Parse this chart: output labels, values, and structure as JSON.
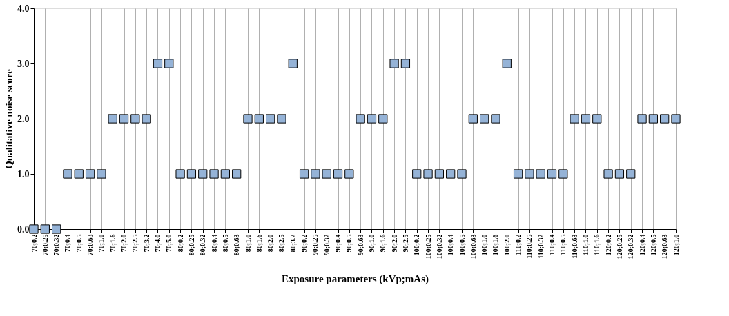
{
  "chart_data": {
    "type": "scatter",
    "xlabel": "Exposure parameters (kVp;mAs)",
    "ylabel": "Qualitative noise score",
    "categories": [
      "70;0.2",
      "70;0.25",
      "70;0.32",
      "70;0.4",
      "70;0.5",
      "70;0.63",
      "70;1.0",
      "70;1.6",
      "70;2.0",
      "70;2.5",
      "70;3.2",
      "70;4.0",
      "70;5.0",
      "80;0.2",
      "80;0.25",
      "80;0.32",
      "80;0.4",
      "80;0.5",
      "80;0.63",
      "80;1.0",
      "80;1.6",
      "80;2.0",
      "80;2.5",
      "80;3.2",
      "90;0.2",
      "90;0.25",
      "90;0.32",
      "90;0.4",
      "90;0.5",
      "90;0.63",
      "90;1.0",
      "90;1.6",
      "90;2.0",
      "90;2.5",
      "100;0.2",
      "100;0.25",
      "100;0.32",
      "100;0.4",
      "100;0.5",
      "100;0.63",
      "100;1.0",
      "100;1.6",
      "100;2.0",
      "110;0.2",
      "110;0.25",
      "110;0.32",
      "110;0.4",
      "110;0.5",
      "110;0.63",
      "110;1.0",
      "110;1.6",
      "120;0.2",
      "120;0.25",
      "120;0.32",
      "120;0.4",
      "120;0.5",
      "120;0.63",
      "120;1.0"
    ],
    "series": [
      {
        "color": "#95b3d7",
        "values": [
          0,
          0,
          0,
          1,
          1,
          1,
          1,
          2,
          2,
          2,
          2,
          3,
          3,
          1,
          1,
          1,
          1,
          1,
          1,
          2,
          2,
          2,
          2,
          3,
          1,
          1,
          1,
          1,
          1,
          2,
          2,
          2,
          3,
          3,
          1,
          1,
          1,
          1,
          1,
          2,
          2,
          2,
          3,
          1,
          1,
          1,
          1,
          1,
          2,
          2,
          2,
          1,
          1,
          1,
          2,
          2,
          2,
          2
        ]
      }
    ],
    "ylim": [
      0,
      4
    ],
    "yticks": [
      {
        "value": 0,
        "label": "0.0"
      },
      {
        "value": 1,
        "label": "1.0"
      },
      {
        "value": 2,
        "label": "2.0"
      },
      {
        "value": 3,
        "label": "3.0"
      },
      {
        "value": 4,
        "label": "4.0"
      }
    ],
    "grid": "x",
    "marker": "square",
    "legend": false
  }
}
